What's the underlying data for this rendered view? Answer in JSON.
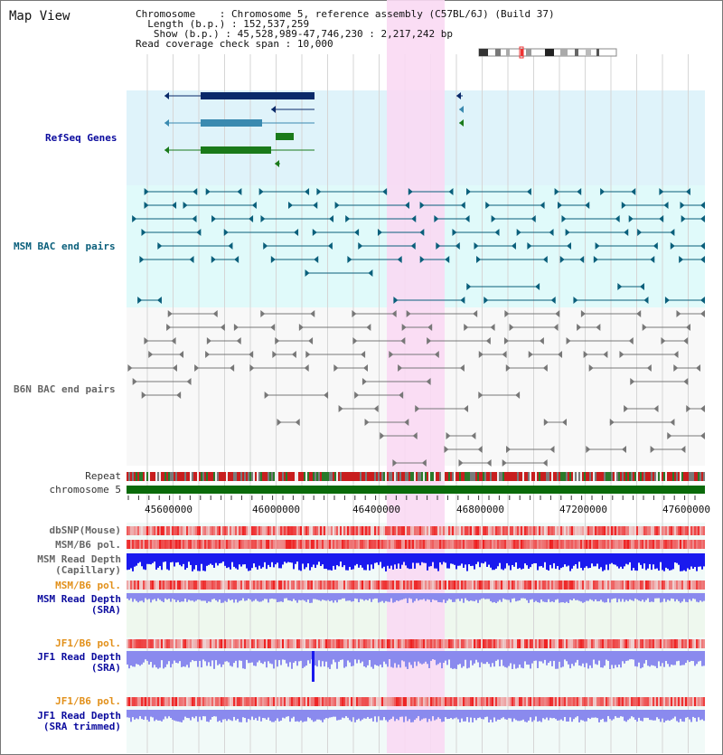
{
  "app": {
    "title": "Map View"
  },
  "header": {
    "chromosome_label": "Chromosome",
    "chromosome_value": "Chromosome 5, reference assembly (C57BL/6J) (Build 37)",
    "length_label": "Length (b.p.)",
    "length_value": "152,537,259",
    "show_label": "Show (b.p.)",
    "show_value": "45,528,989-47,746,230 : 2,217,242 bp",
    "coverage_label": "Read coverage check span",
    "coverage_value": "10,000"
  },
  "tracks": {
    "refseq": "RefSeq Genes",
    "msm_bac": "MSM BAC end pairs",
    "b6n_bac": "B6N BAC end pairs",
    "repeat": "Repeat",
    "chromosome": "chromosome 5",
    "dbsnp": "dbSNP(Mouse)",
    "msm_b6_pol_1": "MSM/B6 pol.",
    "msm_depth_cap_1": "MSM Read Depth",
    "msm_depth_cap_2": "(Capillary)",
    "msm_b6_pol_2": "MSM/B6 pol.",
    "msm_depth_sra_1": "MSM Read Depth",
    "msm_depth_sra_2": "(SRA)",
    "jf1_b6_pol_1": "JF1/B6 pol.",
    "jf1_depth_sra_1": "JF1 Read Depth",
    "jf1_depth_sra_2": "(SRA)",
    "jf1_b6_pol_2": "JF1/B6 pol.",
    "jf1_depth_trim_1": "JF1 Read Depth",
    "jf1_depth_trim_2": "(SRA trimmed)"
  },
  "axis": {
    "ticks": [
      "45600000",
      "46000000",
      "46400000",
      "46800000",
      "47200000",
      "47600000"
    ]
  },
  "colors": {
    "refseq_bg": "#dff3fa",
    "msm_bg": "#e0fafa",
    "b6n_bg": "#f8f8f8",
    "highlight": "#f9d9f3",
    "chromosome_bar": "#0a6a0a",
    "gene_dark": "#0a2a6a",
    "gene_mid": "#3a8ab0",
    "gene_green": "#1a7a1a",
    "bac_teal": "#0a5f7b",
    "bac_gray": "#777777",
    "depth_blue": "#1a1aee",
    "depth_light": "#8a8aee",
    "pol_red": "#ee2222"
  }
}
